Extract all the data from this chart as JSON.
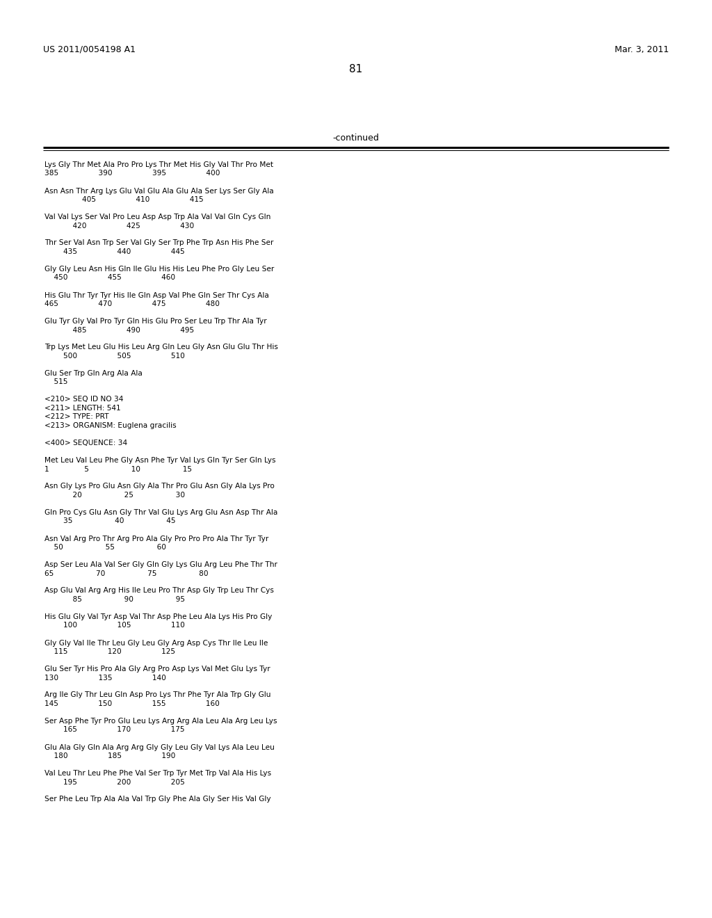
{
  "header_left": "US 2011/0054198 A1",
  "header_right": "Mar. 3, 2011",
  "page_number": "81",
  "continued_label": "-continued",
  "background_color": "#ffffff",
  "text_color": "#000000",
  "content_lines": [
    "Lys Gly Thr Met Ala Pro Pro Lys Thr Met His Gly Val Thr Pro Met",
    "385                 390                 395                 400",
    "",
    "Asn Asn Thr Arg Lys Glu Val Glu Ala Glu Ala Ser Lys Ser Gly Ala",
    "                405                 410                 415",
    "",
    "Val Val Lys Ser Val Pro Leu Asp Asp Trp Ala Val Val Gln Cys Gln",
    "            420                 425                 430",
    "",
    "Thr Ser Val Asn Trp Ser Val Gly Ser Trp Phe Trp Asn His Phe Ser",
    "        435                 440                 445",
    "",
    "Gly Gly Leu Asn His Gln Ile Glu His His Leu Phe Pro Gly Leu Ser",
    "    450                 455                 460",
    "",
    "His Glu Thr Tyr Tyr His Ile Gln Asp Val Phe Gln Ser Thr Cys Ala",
    "465                 470                 475                 480",
    "",
    "Glu Tyr Gly Val Pro Tyr Gln His Glu Pro Ser Leu Trp Thr Ala Tyr",
    "            485                 490                 495",
    "",
    "Trp Lys Met Leu Glu His Leu Arg Gln Leu Gly Asn Glu Glu Thr His",
    "        500                 505                 510",
    "",
    "Glu Ser Trp Gln Arg Ala Ala",
    "    515",
    "",
    "<210> SEQ ID NO 34",
    "<211> LENGTH: 541",
    "<212> TYPE: PRT",
    "<213> ORGANISM: Euglena gracilis",
    "",
    "<400> SEQUENCE: 34",
    "",
    "Met Leu Val Leu Phe Gly Asn Phe Tyr Val Lys Gln Tyr Ser Gln Lys",
    "1               5                  10                  15",
    "",
    "Asn Gly Lys Pro Glu Asn Gly Ala Thr Pro Glu Asn Gly Ala Lys Pro",
    "            20                  25                  30",
    "",
    "Gln Pro Cys Glu Asn Gly Thr Val Glu Lys Arg Glu Asn Asp Thr Ala",
    "        35                  40                  45",
    "",
    "Asn Val Arg Pro Thr Arg Pro Ala Gly Pro Pro Pro Ala Thr Tyr Tyr",
    "    50                  55                  60",
    "",
    "Asp Ser Leu Ala Val Ser Gly Gln Gly Lys Glu Arg Leu Phe Thr Thr",
    "65                  70                  75                  80",
    "",
    "Asp Glu Val Arg Arg His Ile Leu Pro Thr Asp Gly Trp Leu Thr Cys",
    "            85                  90                  95",
    "",
    "His Glu Gly Val Tyr Asp Val Thr Asp Phe Leu Ala Lys His Pro Gly",
    "        100                 105                 110",
    "",
    "Gly Gly Val Ile Thr Leu Gly Leu Gly Arg Asp Cys Thr Ile Leu Ile",
    "    115                 120                 125",
    "",
    "Glu Ser Tyr His Pro Ala Gly Arg Pro Asp Lys Val Met Glu Lys Tyr",
    "130                 135                 140",
    "",
    "Arg Ile Gly Thr Leu Gln Asp Pro Lys Thr Phe Tyr Ala Trp Gly Glu",
    "145                 150                 155                 160",
    "",
    "Ser Asp Phe Tyr Pro Glu Leu Lys Arg Arg Ala Leu Ala Arg Leu Lys",
    "        165                 170                 175",
    "",
    "Glu Ala Gly Gln Ala Arg Arg Gly Gly Leu Gly Val Lys Ala Leu Leu",
    "    180                 185                 190",
    "",
    "Val Leu Thr Leu Phe Phe Val Ser Trp Tyr Met Trp Val Ala His Lys",
    "        195                 200                 205",
    "",
    "Ser Phe Leu Trp Ala Ala Val Trp Gly Phe Ala Gly Ser His Val Gly"
  ]
}
